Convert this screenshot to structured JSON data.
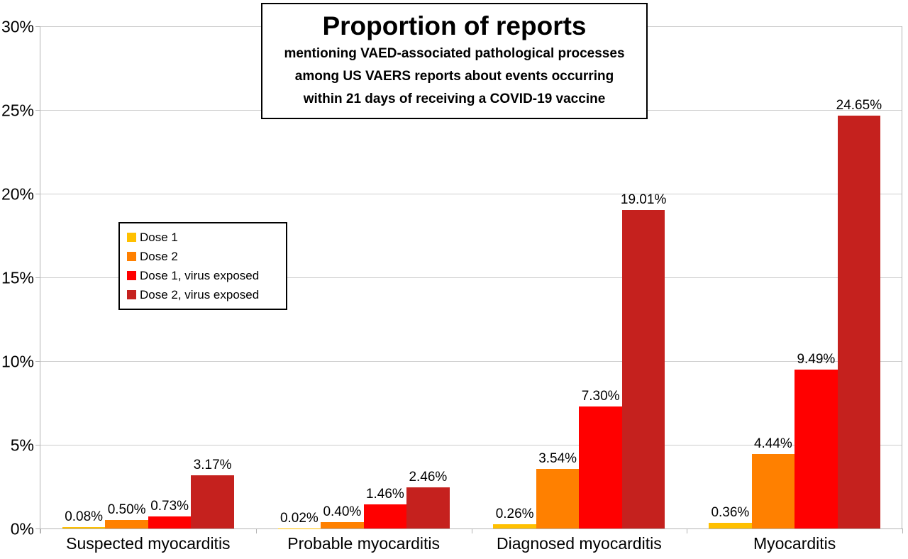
{
  "chart_data": {
    "type": "bar",
    "title": "Proportion of reports",
    "subtitle_lines": [
      "mentioning VAED-associated pathological processes",
      "among US VAERS reports about events occurring",
      "within 21 days of receiving a COVID-19 vaccine"
    ],
    "categories": [
      "Suspected myocarditis",
      "Probable myocarditis",
      "Diagnosed myocarditis",
      "Myocarditis"
    ],
    "series": [
      {
        "name": "Dose 1",
        "color": "#FFC000",
        "values": [
          0.08,
          0.02,
          0.26,
          0.36
        ],
        "labels": [
          "0.08%",
          "0.02%",
          "0.26%",
          "0.36%"
        ]
      },
      {
        "name": "Dose 2",
        "color": "#FF8000",
        "values": [
          0.5,
          0.4,
          3.54,
          4.44
        ],
        "labels": [
          "0.50%",
          "0.40%",
          "3.54%",
          "4.44%"
        ]
      },
      {
        "name": "Dose 1, virus exposed",
        "color": "#FF0000",
        "values": [
          0.73,
          1.46,
          7.3,
          9.49
        ],
        "labels": [
          "0.73%",
          "1.46%",
          "7.30%",
          "9.49%"
        ]
      },
      {
        "name": "Dose 2, virus exposed",
        "color": "#C5211E",
        "values": [
          3.17,
          2.46,
          19.01,
          24.65
        ],
        "labels": [
          "3.17%",
          "2.46%",
          "19.01%",
          "24.65%"
        ]
      }
    ],
    "y_axis": {
      "tick_labels": [
        "0%",
        "5%",
        "10%",
        "15%",
        "20%",
        "25%",
        "30%"
      ],
      "min": 0,
      "max": 30
    },
    "grid": "horizontal-on",
    "legend_position": "inside-upper-left",
    "palette": {
      "gridline": "#CDCDCD",
      "axis": "#B3B3B3",
      "background": "#FFFFFF",
      "text": "#000000"
    }
  }
}
